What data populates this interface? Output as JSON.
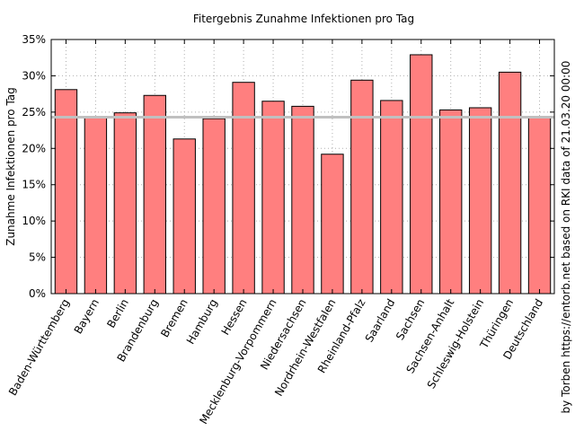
{
  "chart_data": {
    "type": "bar",
    "title": "Fitergebnis Zunahme Infektionen pro Tag",
    "ylabel": "Zunahme Infektionen pro Tag",
    "xlabel": "",
    "credit": "by Torben https://entorb.net based on RKI data of 21.03.20 00:00",
    "ylim": [
      0,
      35
    ],
    "yticks": [
      0,
      5,
      10,
      15,
      20,
      25,
      30,
      35
    ],
    "ytick_suffix": "%",
    "grid": true,
    "bar_color": "#ff7f7f",
    "reference_line": {
      "value": 24.3,
      "color": "#c0c0c0"
    },
    "categories": [
      "Baden-Württemberg",
      "Bayern",
      "Berlin",
      "Brandenburg",
      "Bremen",
      "Hamburg",
      "Hessen",
      "Mecklenburg-Vorpommern",
      "Niedersachsen",
      "Nordrhein-Westfalen",
      "Rheinland-Pfalz",
      "Saarland",
      "Sachsen",
      "Sachsen-Anhalt",
      "Schleswig-Holstein",
      "Thüringen",
      "Deutschland"
    ],
    "values": [
      28.1,
      24.2,
      24.9,
      27.3,
      21.3,
      24.1,
      29.1,
      26.5,
      25.8,
      19.2,
      29.4,
      26.6,
      32.9,
      25.3,
      25.6,
      30.5,
      24.3
    ]
  }
}
